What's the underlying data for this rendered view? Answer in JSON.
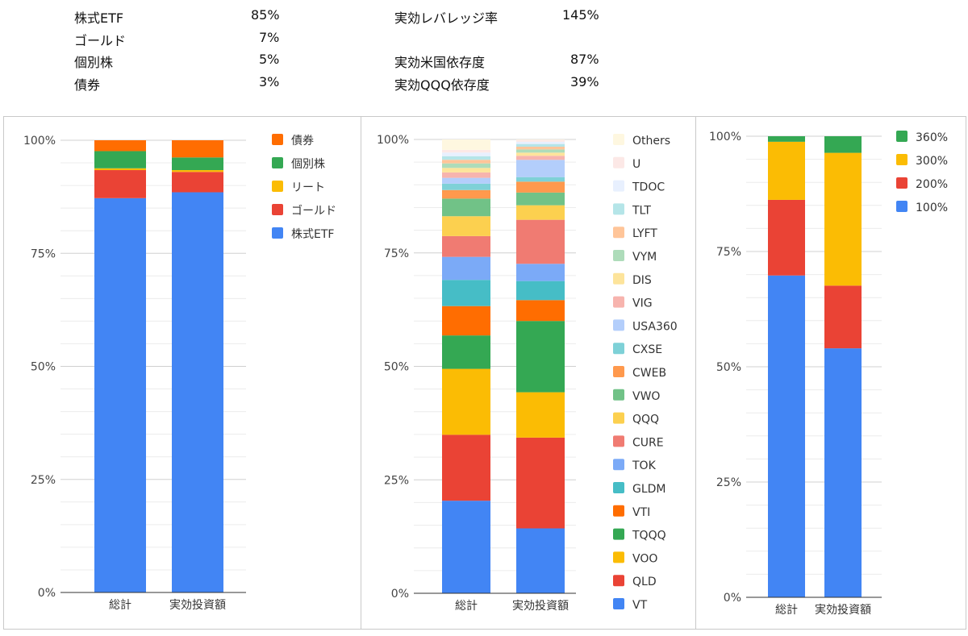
{
  "summary": {
    "left": [
      {
        "label": "株式ETF",
        "value": "85%"
      },
      {
        "label": "ゴールド",
        "value": "7%"
      },
      {
        "label": "個別株",
        "value": "5%"
      },
      {
        "label": "債券",
        "value": "3%"
      }
    ],
    "right": [
      {
        "label": "実効レバレッジ率",
        "value": "145%"
      },
      {
        "label": "実効米国依存度",
        "value": "87%"
      },
      {
        "label": "実効QQQ依存度",
        "value": "39%"
      }
    ]
  },
  "chart_data": [
    {
      "type": "bar",
      "stacked": "percent",
      "categories": [
        "総計",
        "実効投資額"
      ],
      "yticks": [
        "0%",
        "25%",
        "50%",
        "75%",
        "100%"
      ],
      "ylim": [
        0,
        100
      ],
      "grid": true,
      "legend": "right",
      "series": [
        {
          "name": "株式ETF",
          "color": "#4285F4",
          "values": [
            87.2,
            88.5
          ]
        },
        {
          "name": "ゴールド",
          "color": "#EA4335",
          "values": [
            6.2,
            4.5
          ]
        },
        {
          "name": "リート",
          "color": "#FBBC04",
          "values": [
            0.4,
            0.4
          ]
        },
        {
          "name": "個別株",
          "color": "#34A853",
          "values": [
            3.8,
            2.8
          ]
        },
        {
          "name": "債券",
          "color": "#FF6D01",
          "values": [
            2.4,
            3.8
          ]
        }
      ]
    },
    {
      "type": "bar",
      "stacked": "percent",
      "categories": [
        "総計",
        "実効投資額"
      ],
      "yticks": [
        "0%",
        "25%",
        "50%",
        "75%",
        "100%"
      ],
      "ylim": [
        0,
        100
      ],
      "grid": true,
      "legend": "right",
      "series": [
        {
          "name": "VT",
          "color": "#4285F4",
          "values": [
            20.5,
            14.3
          ]
        },
        {
          "name": "QLD",
          "color": "#EA4335",
          "values": [
            14.6,
            20.0
          ]
        },
        {
          "name": "VOO",
          "color": "#FBBC04",
          "values": [
            14.6,
            10.0
          ]
        },
        {
          "name": "TQQQ",
          "color": "#34A853",
          "values": [
            7.4,
            15.7
          ]
        },
        {
          "name": "VTI",
          "color": "#FF6D01",
          "values": [
            6.5,
            4.6
          ]
        },
        {
          "name": "GLDM",
          "color": "#46BDC6",
          "values": [
            5.8,
            4.2
          ]
        },
        {
          "name": "TOK",
          "color": "#7BAAF7",
          "values": [
            5.1,
            3.8
          ]
        },
        {
          "name": "CURE",
          "color": "#F07B72",
          "values": [
            4.6,
            9.7
          ]
        },
        {
          "name": "QQQ",
          "color": "#FCD04F",
          "values": [
            4.4,
            3.2
          ]
        },
        {
          "name": "VWO",
          "color": "#71C287",
          "values": [
            3.9,
            2.8
          ]
        },
        {
          "name": "CWEB",
          "color": "#FF994D",
          "values": [
            1.9,
            2.4
          ]
        },
        {
          "name": "CXSE",
          "color": "#7ED1D7",
          "values": [
            1.4,
            1.0
          ]
        },
        {
          "name": "USA360",
          "color": "#B3CEFB",
          "values": [
            1.3,
            3.8
          ]
        },
        {
          "name": "VIG",
          "color": "#F7B4AE",
          "values": [
            1.2,
            0.9
          ]
        },
        {
          "name": "DIS",
          "color": "#FDE49B",
          "values": [
            1.0,
            0.7
          ]
        },
        {
          "name": "VYM",
          "color": "#AEDCBA",
          "values": [
            1.0,
            0.7
          ]
        },
        {
          "name": "LYFT",
          "color": "#FFC599",
          "values": [
            0.8,
            0.6
          ]
        },
        {
          "name": "TLT",
          "color": "#B5E5E8",
          "values": [
            0.8,
            0.6
          ]
        },
        {
          "name": "TDOC",
          "color": "#E8F0FE",
          "values": [
            0.8,
            0.5
          ]
        },
        {
          "name": "U",
          "color": "#FCE8E6",
          "values": [
            0.6,
            0.4
          ]
        },
        {
          "name": "Others",
          "color": "#FEF7E0",
          "values": [
            2.3,
            0.1
          ]
        }
      ]
    },
    {
      "type": "bar",
      "stacked": "percent",
      "categories": [
        "総計",
        "実効投資額"
      ],
      "yticks": [
        "0%",
        "25%",
        "50%",
        "75%",
        "100%"
      ],
      "ylim": [
        0,
        100
      ],
      "grid": true,
      "legend": "right",
      "series": [
        {
          "name": "100%",
          "color": "#4285F4",
          "values": [
            69.8,
            54.0
          ]
        },
        {
          "name": "200%",
          "color": "#EA4335",
          "values": [
            16.4,
            13.6
          ]
        },
        {
          "name": "300%",
          "color": "#FBBC04",
          "values": [
            12.6,
            28.8
          ]
        },
        {
          "name": "360%",
          "color": "#34A853",
          "values": [
            1.2,
            3.6
          ]
        }
      ]
    }
  ]
}
